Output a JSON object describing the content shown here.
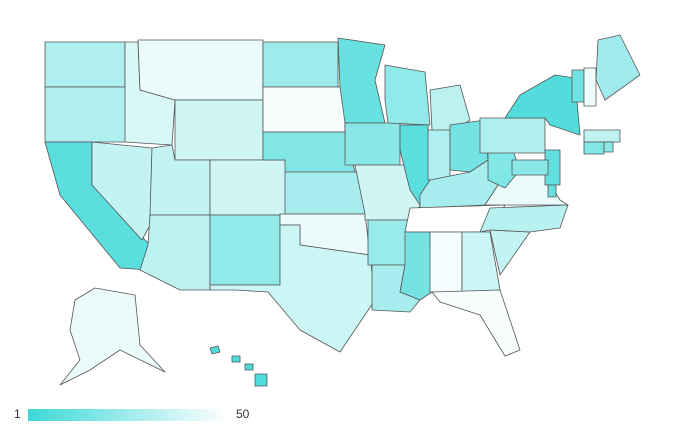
{
  "map": {
    "type": "choropleth",
    "scale": {
      "min": 1,
      "max": 50,
      "min_color": "#3ed8d8",
      "max_color": "#ffffff"
    },
    "values": {
      "WA": 30,
      "OR": 30,
      "CA": 8,
      "NV": 35,
      "ID": 40,
      "MT": 45,
      "WY": 38,
      "UT": 35,
      "CO": 38,
      "AZ": 33,
      "NM": 22,
      "ND": 25,
      "SD": 48,
      "NE": 18,
      "KS": 28,
      "OK": 45,
      "TX": 37,
      "MN": 12,
      "IA": 20,
      "MO": 38,
      "AR": 24,
      "LA": 28,
      "WI": 22,
      "IL": 8,
      "MI": 33,
      "IN": 30,
      "OH": 15,
      "KY": 28,
      "TN": 50,
      "MS": 15,
      "AL": 47,
      "GA": 37,
      "FL": 48,
      "SC": 35,
      "NC": 32,
      "VA": 45,
      "WV": 18,
      "PA": 30,
      "NY": 6,
      "VT": 14,
      "NH": 46,
      "ME": 26,
      "MA": 34,
      "CT": 18,
      "RI": 20,
      "NJ": 10,
      "DE": 12,
      "MD": 20,
      "AK": 45,
      "HI": 5
    }
  }
}
